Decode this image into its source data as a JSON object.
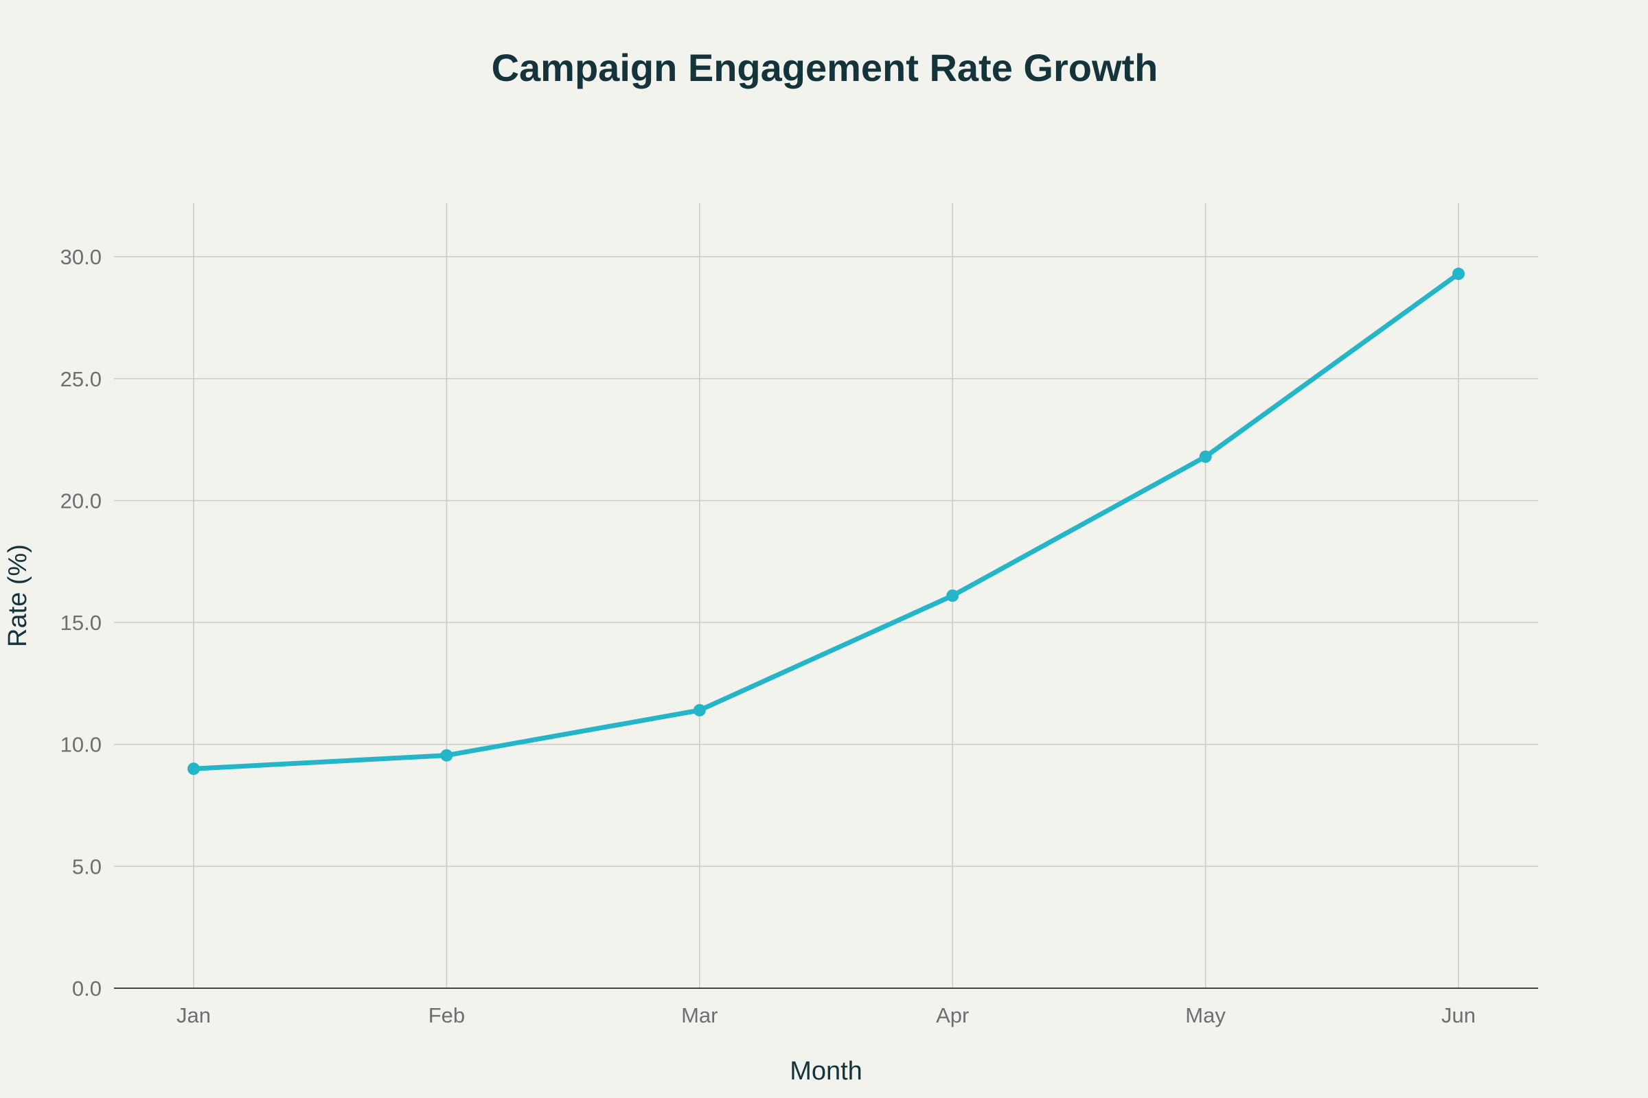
{
  "chart_data": {
    "type": "line",
    "title": "Campaign Engagement Rate Growth",
    "xlabel": "Month",
    "ylabel": "Rate (%)",
    "categories": [
      "Jan",
      "Feb",
      "Mar",
      "Apr",
      "May",
      "Jun"
    ],
    "series": [
      {
        "values": [
          9.0,
          9.55,
          11.4,
          16.1,
          21.8,
          29.3
        ],
        "color": "#24b5c9"
      }
    ],
    "ylim": [
      0,
      32.2
    ],
    "yticks": [
      0,
      5,
      10,
      15,
      20,
      25,
      30
    ],
    "ytick_labels": [
      "0.0",
      "5.0",
      "10.0",
      "15.0",
      "20.0",
      "25.0",
      "30.0"
    ],
    "grid": true,
    "legend": "none"
  }
}
